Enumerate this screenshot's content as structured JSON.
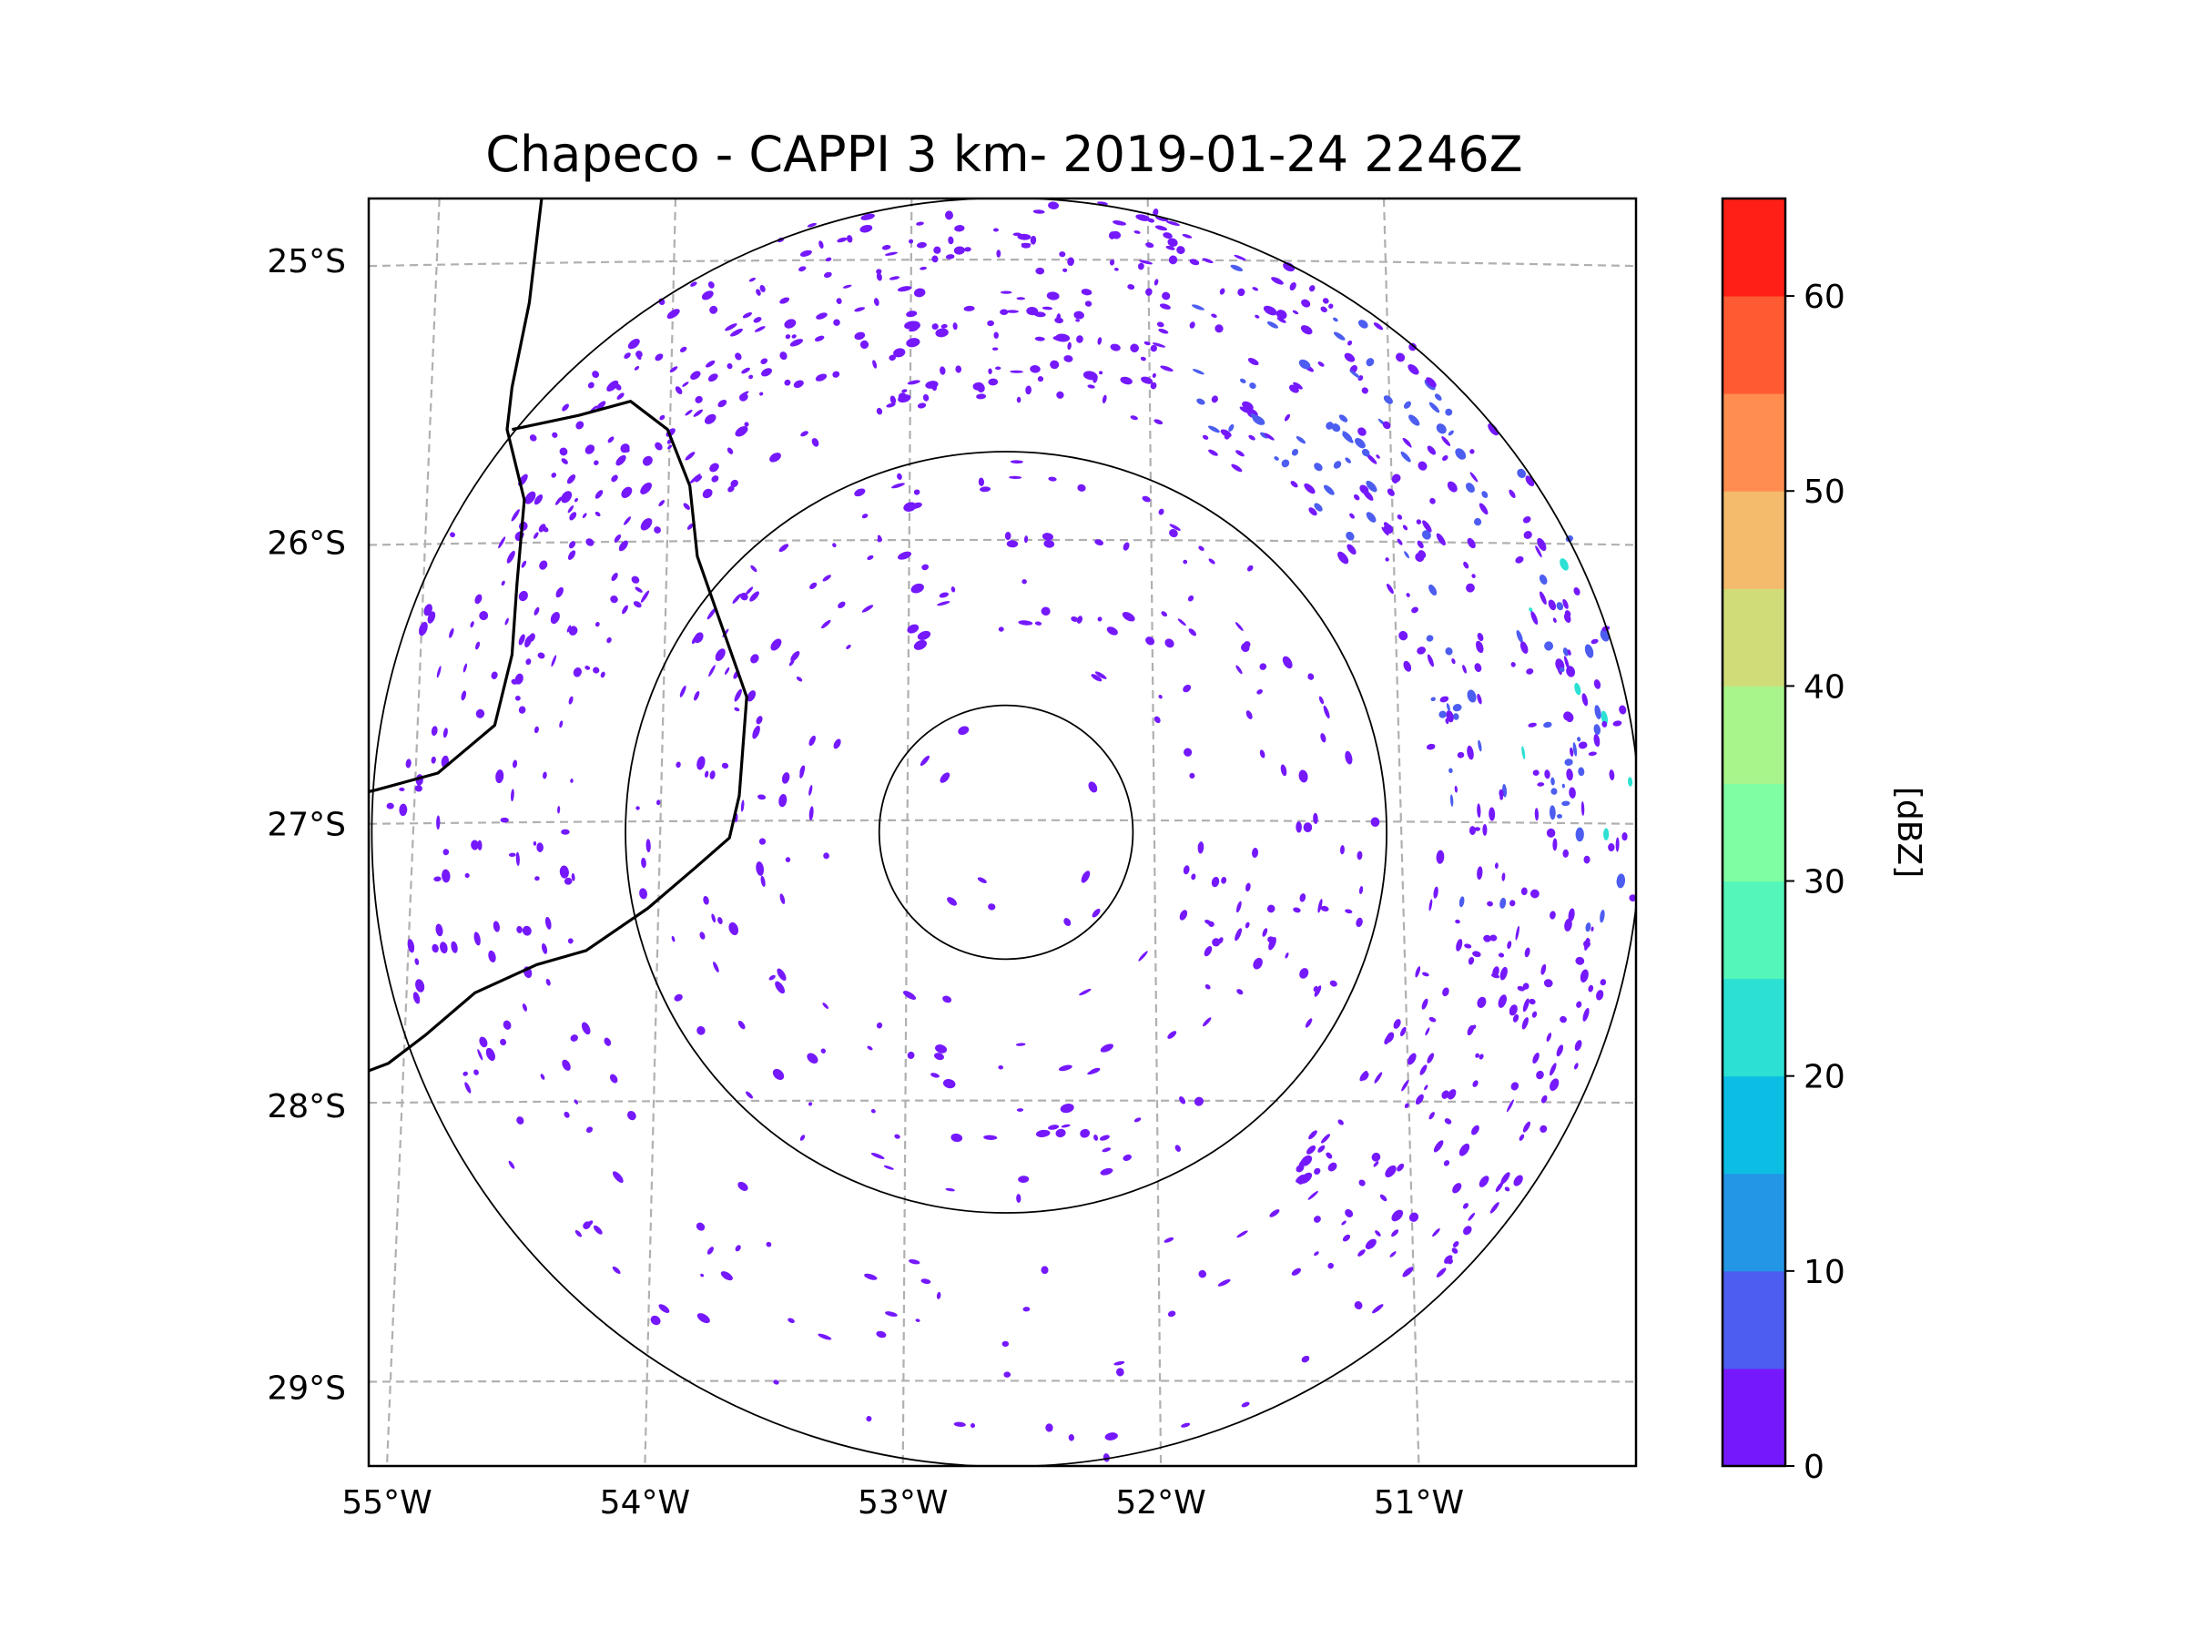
{
  "title": "Chapeco - CAPPI 3 km- 2019-01-24 2246Z",
  "map": {
    "projection": "azimuthal / polar radar view",
    "radar_site": {
      "name": "Chapeco",
      "lon": -52.6,
      "lat": -27.03
    },
    "extent": {
      "lon_min": -55.18,
      "lon_max": -50.05,
      "lat_min": -29.28,
      "lat_max": -24.78
    },
    "range_rings_km": [
      50,
      150,
      250
    ],
    "lat_ticks": [
      "25°S",
      "26°S",
      "27°S",
      "28°S",
      "29°S"
    ],
    "lat_tick_values": [
      -25,
      -26,
      -27,
      -28,
      -29
    ],
    "lon_ticks": [
      "55°W",
      "54°W",
      "53°W",
      "52°W",
      "51°W"
    ],
    "lon_tick_values": [
      -55,
      -54,
      -53,
      -52,
      -51
    ],
    "gridlines": "dashed gray",
    "borders": "country / state borders in black (west side)"
  },
  "colorbar": {
    "label": "[dBZ]",
    "min": 0,
    "max": 65,
    "step": 5,
    "tick_labels": [
      "0",
      "10",
      "20",
      "30",
      "40",
      "50",
      "60"
    ],
    "tick_values": [
      0,
      10,
      20,
      30,
      40,
      50,
      60
    ],
    "colors": [
      "#7519fc",
      "#4c5df0",
      "#2496e6",
      "#0cbde4",
      "#2ce1d3",
      "#55f6b9",
      "#80fea3",
      "#a8f58b",
      "#d0dc78",
      "#f3bb6b",
      "#ff8d4f",
      "#ff5b33",
      "#ff1f16"
    ]
  },
  "echo_colors": {
    "weak": "#7519fc",
    "moderate": "#4c5df0",
    "strong": "#2ce1d3"
  }
}
